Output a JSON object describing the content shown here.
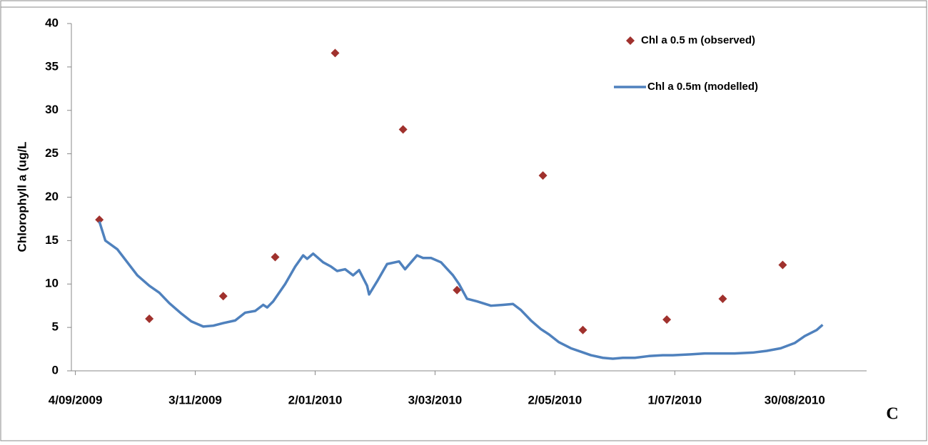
{
  "chart_data": {
    "type": "scatter-line",
    "y_label": "Chlorophyll a (ug/L",
    "annotation": "C",
    "xlim": [
      "2009-09-02",
      "2010-10-05"
    ],
    "xticks": [
      {
        "value": "2009-09-04",
        "label": "4/09/2009"
      },
      {
        "value": "2009-11-03",
        "label": "3/11/2009"
      },
      {
        "value": "2010-01-02",
        "label": "2/01/2010"
      },
      {
        "value": "2010-03-03",
        "label": "3/03/2010"
      },
      {
        "value": "2010-05-02",
        "label": "2/05/2010"
      },
      {
        "value": "2010-07-01",
        "label": "1/07/2010"
      },
      {
        "value": "2010-08-30",
        "label": "30/08/2010"
      }
    ],
    "ylim": [
      0,
      40
    ],
    "yticks": [
      0,
      5,
      10,
      15,
      20,
      25,
      30,
      35,
      40
    ],
    "series": [
      {
        "name": "Chl a 0.5 m (observed)",
        "color": "#a0312d",
        "kind": "scatter",
        "x": [
          "2009-09-16",
          "2009-10-11",
          "2009-11-17",
          "2009-12-13",
          "2010-01-12",
          "2010-02-15",
          "2010-03-14",
          "2010-04-26",
          "2010-05-16",
          "2010-06-27",
          "2010-07-25",
          "2010-08-24"
        ],
        "values": [
          17.4,
          6.0,
          8.6,
          13.1,
          36.6,
          27.8,
          9.3,
          22.5,
          4.7,
          5.9,
          8.3,
          12.2
        ]
      },
      {
        "name": "Chl a 0.5m (modelled)",
        "color": "#4f81bd",
        "kind": "line",
        "x": [
          "2009-09-16",
          "2009-09-19",
          "2009-09-25",
          "2009-09-30",
          "2009-10-05",
          "2009-10-11",
          "2009-10-16",
          "2009-10-21",
          "2009-10-27",
          "2009-11-01",
          "2009-11-07",
          "2009-11-12",
          "2009-11-17",
          "2009-11-23",
          "2009-11-28",
          "2009-12-03",
          "2009-12-07",
          "2009-12-09",
          "2009-12-12",
          "2009-12-18",
          "2009-12-23",
          "2009-12-27",
          "2009-12-29",
          "2010-01-01",
          "2010-01-06",
          "2010-01-10",
          "2010-01-13",
          "2010-01-17",
          "2010-01-21",
          "2010-01-24",
          "2010-01-28",
          "2010-01-29",
          "2010-02-02",
          "2010-02-07",
          "2010-02-13",
          "2010-02-16",
          "2010-02-19",
          "2010-02-22",
          "2010-02-25",
          "2010-03-01",
          "2010-03-06",
          "2010-03-12",
          "2010-03-15",
          "2010-03-19",
          "2010-03-24",
          "2010-03-31",
          "2010-04-06",
          "2010-04-11",
          "2010-04-15",
          "2010-04-20",
          "2010-04-25",
          "2010-04-29",
          "2010-05-04",
          "2010-05-10",
          "2010-05-15",
          "2010-05-20",
          "2010-05-26",
          "2010-05-31",
          "2010-06-05",
          "2010-06-11",
          "2010-06-18",
          "2010-06-25",
          "2010-06-30",
          "2010-07-09",
          "2010-07-16",
          "2010-07-24",
          "2010-07-31",
          "2010-08-09",
          "2010-08-16",
          "2010-08-23",
          "2010-08-30",
          "2010-09-04",
          "2010-09-10",
          "2010-09-13"
        ],
        "values": [
          17.2,
          15.0,
          14.0,
          12.5,
          11.0,
          9.8,
          9.0,
          7.8,
          6.6,
          5.7,
          5.1,
          5.2,
          5.5,
          5.8,
          6.7,
          6.9,
          7.6,
          7.3,
          8.0,
          10.0,
          12.0,
          13.3,
          12.9,
          13.5,
          12.5,
          12.0,
          11.5,
          11.7,
          11.0,
          11.6,
          9.8,
          8.8,
          10.3,
          12.3,
          12.6,
          11.7,
          12.5,
          13.3,
          13.0,
          13.0,
          12.5,
          11.0,
          10.0,
          8.3,
          8.0,
          7.5,
          7.6,
          7.7,
          7.0,
          5.8,
          4.8,
          4.2,
          3.3,
          2.6,
          2.2,
          1.8,
          1.5,
          1.4,
          1.5,
          1.5,
          1.7,
          1.8,
          1.8,
          1.9,
          2.0,
          2.0,
          2.0,
          2.1,
          2.3,
          2.6,
          3.2,
          4.0,
          4.7,
          5.3
        ]
      }
    ]
  }
}
